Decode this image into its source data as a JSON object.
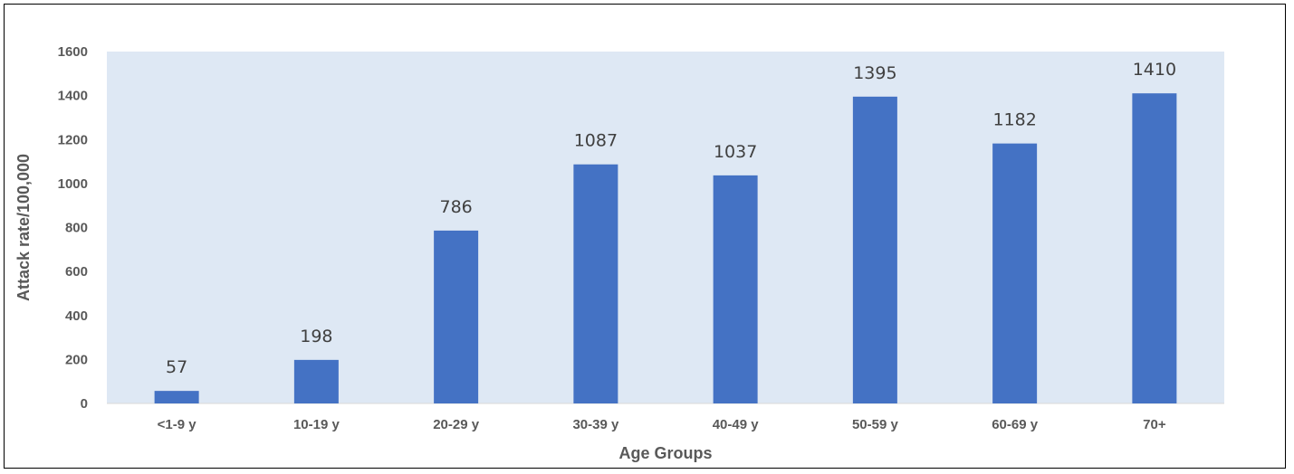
{
  "chart_data": {
    "type": "bar",
    "title": "",
    "xlabel": "Age Groups",
    "ylabel": "Attack rate/100,000",
    "categories": [
      "<1-9 y",
      "10-19 y",
      "20-29 y",
      "30-39 y",
      "40-49 y",
      "50-59 y",
      "60-69 y",
      "70+"
    ],
    "values": [
      57,
      198,
      786,
      1087,
      1037,
      1395,
      1182,
      1410
    ],
    "data_labels": [
      "57",
      "198",
      "786",
      "1087",
      "1037",
      "1395",
      "1182",
      "1410"
    ],
    "ylim": [
      0,
      1600
    ],
    "yticks": [
      "0",
      "200",
      "400",
      "600",
      "800",
      "1000",
      "1200",
      "1400",
      "1600"
    ],
    "grid": false,
    "legend": "none",
    "colors": {
      "bar": "#4472C4",
      "plot_background": "#DEE8F4",
      "tick_text": "#595959",
      "label_text": "#404040"
    }
  }
}
